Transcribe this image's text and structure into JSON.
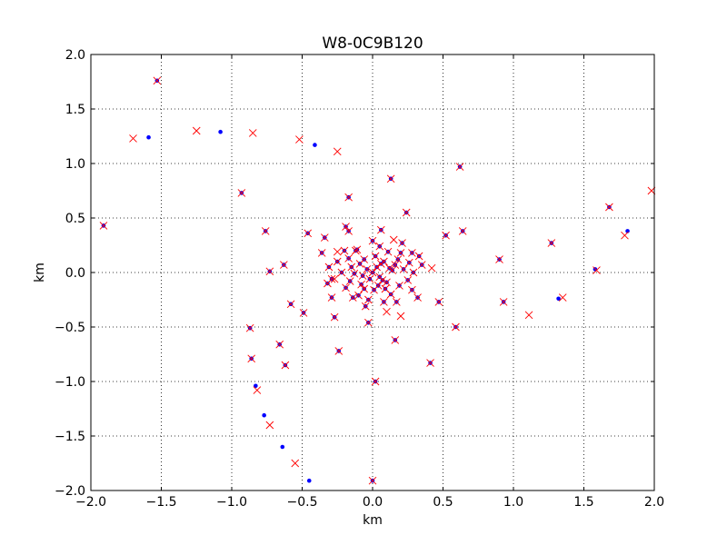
{
  "chart_data": {
    "type": "scatter",
    "title": "W8-0C9B120",
    "xlabel": "km",
    "ylabel": "km",
    "xlim": [
      -2.0,
      2.0
    ],
    "ylim": [
      -2.0,
      2.0
    ],
    "grid": true,
    "xticks": [
      -2.0,
      -1.5,
      -1.0,
      -0.5,
      0.0,
      0.5,
      1.0,
      1.5,
      2.0
    ],
    "xtick_labels": [
      "−2.0",
      "−1.5",
      "−1.0",
      "−0.5",
      "0.0",
      "0.5",
      "1.0",
      "1.5",
      "2.0"
    ],
    "yticks": [
      -2.0,
      -1.5,
      -1.0,
      -0.5,
      0.0,
      0.5,
      1.0,
      1.5,
      2.0
    ],
    "ytick_labels": [
      "−2.0",
      "−1.5",
      "−1.0",
      "−0.5",
      "0.0",
      "0.5",
      "1.0",
      "1.5",
      "2.0"
    ],
    "series": [
      {
        "name": "blue",
        "marker": "dot",
        "color": "#0000ff",
        "points": [
          [
            -1.53,
            1.76
          ],
          [
            -1.59,
            1.24
          ],
          [
            -1.08,
            1.29
          ],
          [
            -0.41,
            1.17
          ],
          [
            -1.91,
            0.43
          ],
          [
            -0.93,
            0.73
          ],
          [
            -0.76,
            0.38
          ],
          [
            -0.73,
            0.01
          ],
          [
            -0.63,
            0.07
          ],
          [
            -0.58,
            -0.29
          ],
          [
            -0.49,
            -0.37
          ],
          [
            -0.46,
            0.36
          ],
          [
            -0.36,
            0.18
          ],
          [
            -0.34,
            0.32
          ],
          [
            -0.31,
            0.05
          ],
          [
            -0.29,
            -0.23
          ],
          [
            -0.27,
            -0.41
          ],
          [
            -0.24,
            -0.72
          ],
          [
            -0.19,
            0.42
          ],
          [
            -0.17,
            0.38
          ],
          [
            -0.17,
            0.69
          ],
          [
            -0.14,
            -0.23
          ],
          [
            -0.11,
            0.21
          ],
          [
            -0.06,
            -0.15
          ],
          [
            -0.03,
            -0.46
          ],
          [
            0.02,
            -1.0
          ],
          [
            0.06,
            0.39
          ],
          [
            0.13,
            0.86
          ],
          [
            0.16,
            -0.62
          ],
          [
            0.21,
            0.27
          ],
          [
            0.24,
            0.55
          ],
          [
            0.28,
            0.18
          ],
          [
            0.32,
            -0.23
          ],
          [
            0.35,
            0.07
          ],
          [
            0.41,
            -0.83
          ],
          [
            0.47,
            -0.27
          ],
          [
            0.52,
            0.34
          ],
          [
            0.59,
            -0.5
          ],
          [
            0.62,
            0.97
          ],
          [
            0.64,
            0.38
          ],
          [
            0.9,
            0.12
          ],
          [
            0.93,
            -0.27
          ],
          [
            1.27,
            0.27
          ],
          [
            1.32,
            -0.24
          ],
          [
            1.58,
            0.03
          ],
          [
            1.68,
            0.6
          ],
          [
            1.81,
            0.38
          ],
          [
            -0.66,
            -0.66
          ],
          [
            -0.62,
            -0.85
          ],
          [
            -0.87,
            -0.51
          ],
          [
            -0.86,
            -0.79
          ],
          [
            -0.83,
            -1.04
          ],
          [
            -0.77,
            -1.31
          ],
          [
            -0.64,
            -1.6
          ],
          [
            -0.45,
            -1.91
          ],
          [
            0.0,
            -1.91
          ],
          [
            0.0,
            0.0
          ],
          [
            0.03,
            0.05
          ],
          [
            -0.04,
            0.03
          ],
          [
            0.05,
            -0.04
          ],
          [
            -0.02,
            -0.06
          ],
          [
            0.08,
            0.1
          ],
          [
            -0.09,
            0.08
          ],
          [
            0.1,
            -0.09
          ],
          [
            -0.08,
            -0.11
          ],
          [
            0.14,
            0.02
          ],
          [
            -0.13,
            -0.01
          ],
          [
            0.02,
            0.15
          ],
          [
            0.01,
            -0.16
          ],
          [
            0.18,
            0.12
          ],
          [
            -0.17,
            0.13
          ],
          [
            0.19,
            -0.12
          ],
          [
            -0.19,
            -0.14
          ],
          [
            0.22,
            0.03
          ],
          [
            -0.22,
            0.0
          ],
          [
            0.05,
            0.24
          ],
          [
            -0.03,
            -0.25
          ],
          [
            0.11,
            0.19
          ],
          [
            -0.12,
            0.2
          ],
          [
            0.13,
            -0.2
          ],
          [
            -0.1,
            -0.21
          ],
          [
            0.26,
            0.09
          ],
          [
            -0.25,
            0.1
          ],
          [
            0.25,
            -0.07
          ],
          [
            0.07,
            -0.07
          ],
          [
            -0.06,
            0.12
          ],
          [
            0.16,
            0.07
          ],
          [
            -0.15,
            0.05
          ],
          [
            0.06,
            0.08
          ],
          [
            -0.07,
            -0.03
          ],
          [
            0.04,
            -0.12
          ],
          [
            0.12,
            0.04
          ],
          [
            0.09,
            -0.15
          ],
          [
            -0.16,
            -0.08
          ],
          [
            0.2,
            0.18
          ],
          [
            -0.2,
            0.2
          ],
          [
            0.29,
            0.0
          ],
          [
            -0.29,
            -0.06
          ],
          [
            0.0,
            0.29
          ],
          [
            0.08,
            -0.27
          ],
          [
            0.17,
            -0.27
          ],
          [
            -0.05,
            -0.31
          ],
          [
            0.28,
            -0.16
          ],
          [
            0.33,
            0.15
          ],
          [
            -0.32,
            -0.1
          ]
        ]
      },
      {
        "name": "red",
        "marker": "x",
        "color": "#ff0000",
        "points": [
          [
            -1.53,
            1.76
          ],
          [
            -1.7,
            1.23
          ],
          [
            -1.25,
            1.3
          ],
          [
            -0.85,
            1.28
          ],
          [
            -0.52,
            1.22
          ],
          [
            -0.25,
            1.11
          ],
          [
            -1.91,
            0.43
          ],
          [
            -0.93,
            0.73
          ],
          [
            -0.76,
            0.38
          ],
          [
            -0.73,
            0.01
          ],
          [
            -0.63,
            0.07
          ],
          [
            -0.58,
            -0.29
          ],
          [
            -0.49,
            -0.37
          ],
          [
            -0.46,
            0.36
          ],
          [
            -0.36,
            0.18
          ],
          [
            -0.34,
            0.32
          ],
          [
            -0.31,
            0.05
          ],
          [
            -0.29,
            -0.23
          ],
          [
            -0.27,
            -0.41
          ],
          [
            -0.24,
            -0.72
          ],
          [
            -0.19,
            0.42
          ],
          [
            -0.17,
            0.38
          ],
          [
            -0.17,
            0.69
          ],
          [
            -0.14,
            -0.23
          ],
          [
            -0.11,
            0.21
          ],
          [
            -0.06,
            -0.15
          ],
          [
            -0.03,
            -0.46
          ],
          [
            0.02,
            -1.0
          ],
          [
            0.06,
            0.39
          ],
          [
            0.13,
            0.86
          ],
          [
            0.16,
            -0.62
          ],
          [
            0.21,
            0.27
          ],
          [
            0.24,
            0.55
          ],
          [
            0.28,
            0.18
          ],
          [
            0.32,
            -0.23
          ],
          [
            0.35,
            0.07
          ],
          [
            0.41,
            -0.83
          ],
          [
            0.47,
            -0.27
          ],
          [
            0.52,
            0.34
          ],
          [
            0.59,
            -0.5
          ],
          [
            0.62,
            0.97
          ],
          [
            0.64,
            0.38
          ],
          [
            0.9,
            0.12
          ],
          [
            0.93,
            -0.27
          ],
          [
            1.27,
            0.27
          ],
          [
            1.35,
            -0.23
          ],
          [
            1.11,
            -0.39
          ],
          [
            1.59,
            0.02
          ],
          [
            1.68,
            0.6
          ],
          [
            1.79,
            0.34
          ],
          [
            1.98,
            0.75
          ],
          [
            -0.66,
            -0.66
          ],
          [
            -0.62,
            -0.85
          ],
          [
            -0.87,
            -0.51
          ],
          [
            -0.86,
            -0.79
          ],
          [
            -0.82,
            -1.08
          ],
          [
            -0.73,
            -1.4
          ],
          [
            -0.55,
            -1.75
          ],
          [
            0.0,
            -1.91
          ],
          [
            -0.25,
            0.19
          ],
          [
            0.15,
            0.3
          ],
          [
            0.2,
            -0.4
          ],
          [
            0.1,
            -0.36
          ],
          [
            0.42,
            0.04
          ],
          [
            -0.27,
            -0.06
          ],
          [
            0.0,
            0.0
          ],
          [
            0.03,
            0.05
          ],
          [
            -0.04,
            0.03
          ],
          [
            0.05,
            -0.04
          ],
          [
            -0.02,
            -0.06
          ],
          [
            0.08,
            0.1
          ],
          [
            -0.09,
            0.08
          ],
          [
            0.1,
            -0.09
          ],
          [
            -0.08,
            -0.11
          ],
          [
            0.14,
            0.02
          ],
          [
            -0.13,
            -0.01
          ],
          [
            0.02,
            0.15
          ],
          [
            0.01,
            -0.16
          ],
          [
            0.18,
            0.12
          ],
          [
            -0.17,
            0.13
          ],
          [
            0.19,
            -0.12
          ],
          [
            -0.19,
            -0.14
          ],
          [
            0.22,
            0.03
          ],
          [
            -0.22,
            0.0
          ],
          [
            0.05,
            0.24
          ],
          [
            -0.03,
            -0.25
          ],
          [
            0.11,
            0.19
          ],
          [
            -0.12,
            0.2
          ],
          [
            0.13,
            -0.2
          ],
          [
            -0.1,
            -0.21
          ],
          [
            0.26,
            0.09
          ],
          [
            -0.25,
            0.1
          ],
          [
            0.25,
            -0.07
          ],
          [
            0.07,
            -0.07
          ],
          [
            -0.06,
            0.12
          ],
          [
            0.16,
            0.07
          ],
          [
            -0.15,
            0.05
          ],
          [
            0.06,
            0.08
          ],
          [
            -0.07,
            -0.03
          ],
          [
            0.04,
            -0.12
          ],
          [
            0.12,
            0.04
          ],
          [
            0.09,
            -0.15
          ],
          [
            -0.16,
            -0.08
          ],
          [
            0.2,
            0.18
          ],
          [
            -0.2,
            0.2
          ],
          [
            0.29,
            0.0
          ],
          [
            -0.29,
            -0.06
          ],
          [
            0.0,
            0.29
          ],
          [
            0.08,
            -0.27
          ],
          [
            0.17,
            -0.27
          ],
          [
            -0.05,
            -0.31
          ],
          [
            0.28,
            -0.16
          ],
          [
            0.33,
            0.15
          ],
          [
            -0.32,
            -0.1
          ]
        ]
      }
    ]
  }
}
